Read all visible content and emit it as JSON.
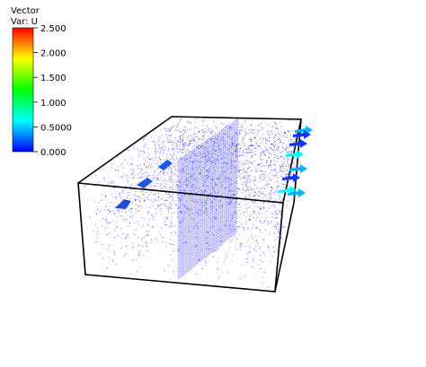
{
  "legend": {
    "title_line1": "Vector",
    "title_line2": "Var: U",
    "ticks": [
      "2.500",
      "2.000",
      "1.500",
      "1.000",
      "0.5000",
      "0.000"
    ],
    "min": 0.0,
    "max": 2.5,
    "colors": [
      "#ff0000",
      "#ffff00",
      "#00ff00",
      "#00ffff",
      "#0000ff"
    ]
  },
  "scene": {
    "box_color": "#000000",
    "point_color": "#1a1aff",
    "arrow_colors": [
      "#00b4ff",
      "#0a3aff",
      "#00ffff"
    ]
  }
}
